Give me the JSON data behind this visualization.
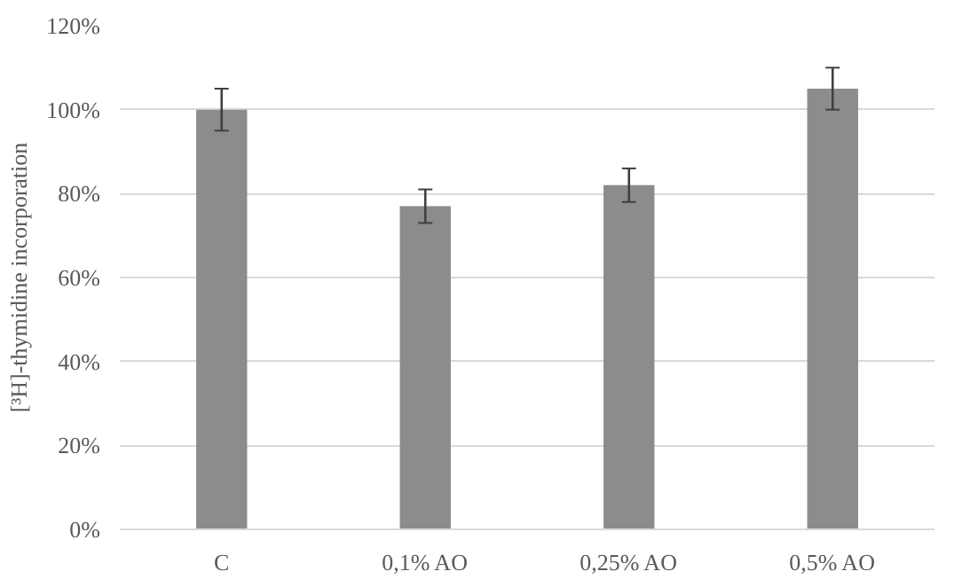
{
  "chart_data": {
    "type": "bar",
    "ylabel": "[³H]-thymidine incorporation",
    "categories": [
      "C",
      "0,1% AO",
      "0,25% AO",
      "0,5% AO"
    ],
    "values": [
      100,
      77,
      82,
      105
    ],
    "errors": [
      5,
      4,
      4,
      5
    ],
    "color": "#8c8c8c",
    "ylim": [
      0,
      120
    ],
    "yticks": [
      {
        "value": 0,
        "label": "0%"
      },
      {
        "value": 20,
        "label": "20%"
      },
      {
        "value": 40,
        "label": "40%"
      },
      {
        "value": 60,
        "label": "60%"
      },
      {
        "value": 80,
        "label": "80%"
      },
      {
        "value": 100,
        "label": "100%"
      },
      {
        "value": 120,
        "label": "120%"
      }
    ],
    "grid": "y"
  }
}
